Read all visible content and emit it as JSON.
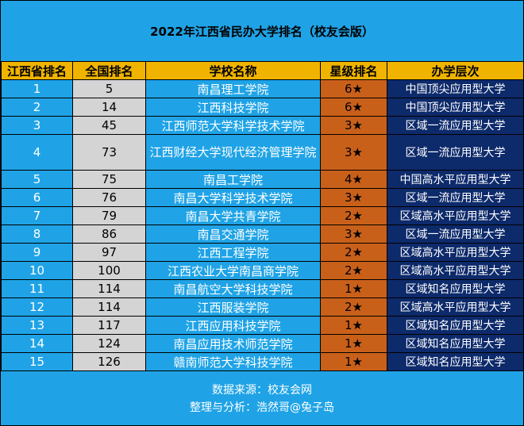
{
  "title": "2022年江西省民办大学排名（校友会版）",
  "headers": [
    "江西省排名",
    "全国排名",
    "学校名称",
    "星级排名",
    "办学层次"
  ],
  "rows": [
    {
      "prov": "1",
      "nat": "5",
      "name": "南昌理工学院",
      "star": "6★",
      "level": "中国顶尖应用型大学"
    },
    {
      "prov": "2",
      "nat": "14",
      "name": "江西科技学院",
      "star": "6★",
      "level": "中国顶尖应用型大学"
    },
    {
      "prov": "3",
      "nat": "45",
      "name": "江西师范大学科学技术学院",
      "star": "3★",
      "level": "区域一流应用型大学"
    },
    {
      "prov": "4",
      "nat": "73",
      "name": "江西财经大学现代经济管理学院",
      "star": "3★",
      "level": "区域一流应用型大学"
    },
    {
      "prov": "5",
      "nat": "75",
      "name": "南昌工学院",
      "star": "4★",
      "level": "中国高水平应用型大学"
    },
    {
      "prov": "6",
      "nat": "76",
      "name": "南昌大学科学技术学院",
      "star": "3★",
      "level": "区域一流应用型大学"
    },
    {
      "prov": "7",
      "nat": "79",
      "name": "南昌大学共青学院",
      "star": "2★",
      "level": "区域高水平应用型大学"
    },
    {
      "prov": "8",
      "nat": "86",
      "name": "南昌交通学院",
      "star": "3★",
      "level": "区域一流应用型大学"
    },
    {
      "prov": "9",
      "nat": "97",
      "name": "江西工程学院",
      "star": "2★",
      "level": "区域高水平应用型大学"
    },
    {
      "prov": "10",
      "nat": "100",
      "name": "江西农业大学南昌商学院",
      "star": "2★",
      "level": "区域高水平应用型大学"
    },
    {
      "prov": "11",
      "nat": "114",
      "name": "南昌航空大学科技学院",
      "star": "1★",
      "level": "区域知名应用型大学"
    },
    {
      "prov": "12",
      "nat": "114",
      "name": "江西服装学院",
      "star": "2★",
      "level": "区域高水平应用型大学"
    },
    {
      "prov": "13",
      "nat": "117",
      "name": "江西应用科技学院",
      "star": "1★",
      "level": "区域知名应用型大学"
    },
    {
      "prov": "14",
      "nat": "124",
      "name": "南昌应用技术师范学院",
      "star": "1★",
      "level": "区域知名应用型大学"
    },
    {
      "prov": "15",
      "nat": "126",
      "name": "赣南师范大学科技学院",
      "star": "1★",
      "level": "区域知名应用型大学"
    }
  ],
  "footer": {
    "source": "数据来源：校友会网",
    "author": "整理与分析：浩然哥@兔子岛"
  }
}
